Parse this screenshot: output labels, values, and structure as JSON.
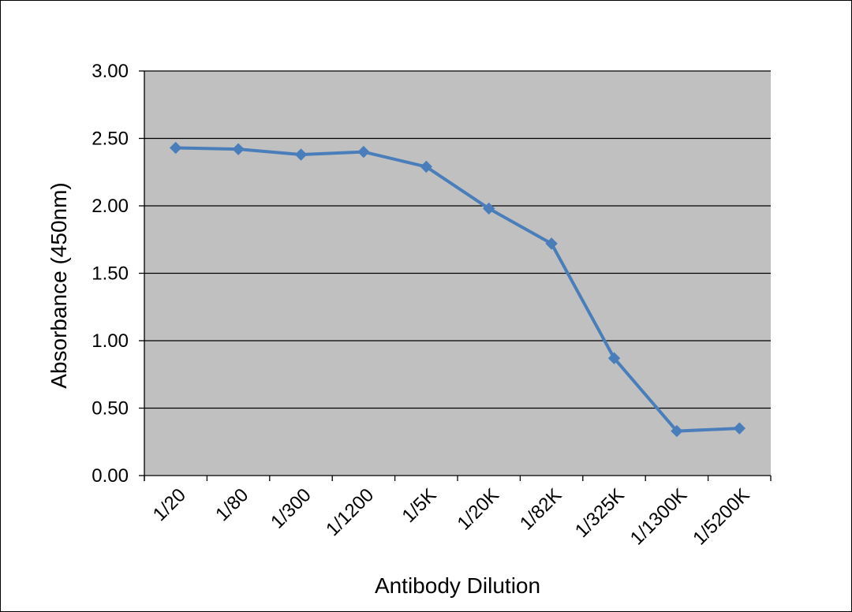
{
  "chart_data": {
    "type": "line",
    "title": "",
    "xlabel": "Antibody Dilution",
    "ylabel": "Absorbance (450nm)",
    "categories": [
      "1/20",
      "1/80",
      "1/300",
      "1/1200",
      "1/5K",
      "1/20K",
      "1/82K",
      "1/325K",
      "1/1300K",
      "1/5200K"
    ],
    "series": [
      {
        "values": [
          2.43,
          2.42,
          2.38,
          2.4,
          2.29,
          1.98,
          1.72,
          0.87,
          0.33,
          0.35
        ]
      }
    ],
    "ylim": [
      0,
      3
    ],
    "yticks": [
      "0.00",
      "0.50",
      "1.00",
      "1.50",
      "2.00",
      "2.50",
      "3.00"
    ],
    "grid": "horizontal",
    "legend": "none",
    "colors": {
      "plot_background": "#c0c0c0",
      "line": "#4a7ebb",
      "gridline": "#000000"
    }
  }
}
